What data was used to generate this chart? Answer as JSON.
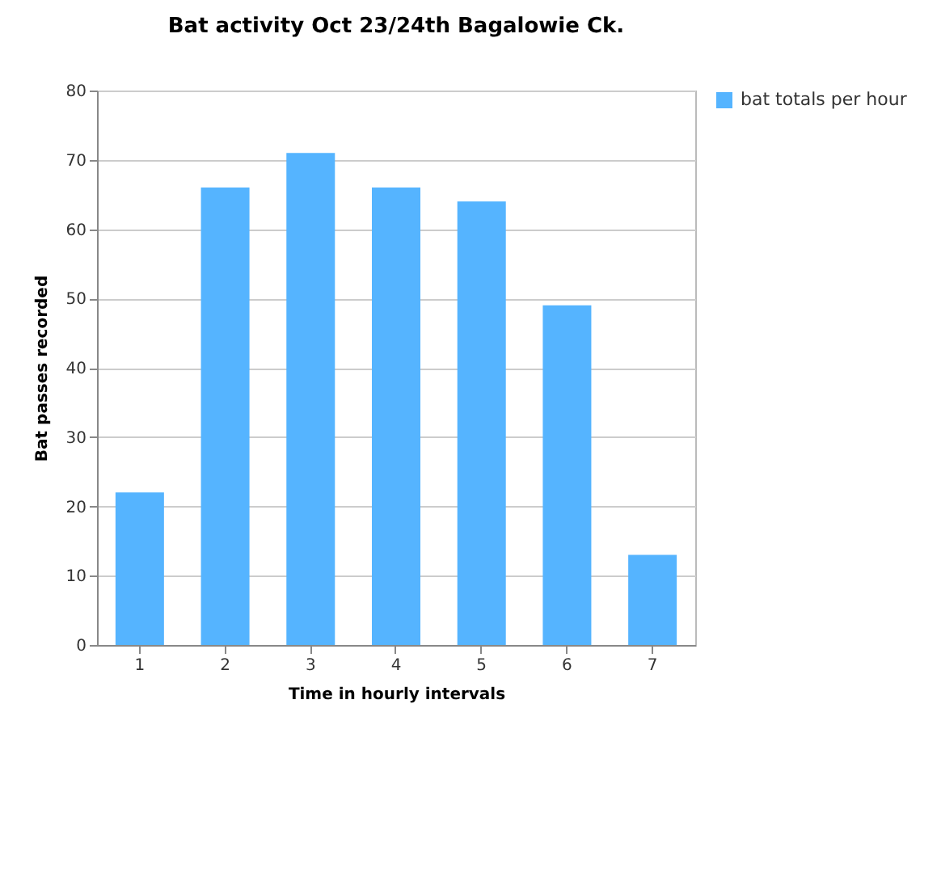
{
  "chart_data": {
    "type": "bar",
    "title": "Bat activity Oct  23/24th Bagalowie Ck.",
    "xlabel": "Time in hourly intervals",
    "ylabel": "Bat passes recorded",
    "categories": [
      "1",
      "2",
      "3",
      "4",
      "5",
      "6",
      "7"
    ],
    "series": [
      {
        "name": "bat totals per hour",
        "color": "#55b4ff",
        "values": [
          22,
          66,
          71,
          66,
          64,
          49,
          13
        ]
      }
    ],
    "ylim": [
      0,
      80
    ],
    "yticks": [
      0,
      10,
      20,
      30,
      40,
      50,
      60,
      70,
      80
    ],
    "grid": "y",
    "legend": "right"
  }
}
